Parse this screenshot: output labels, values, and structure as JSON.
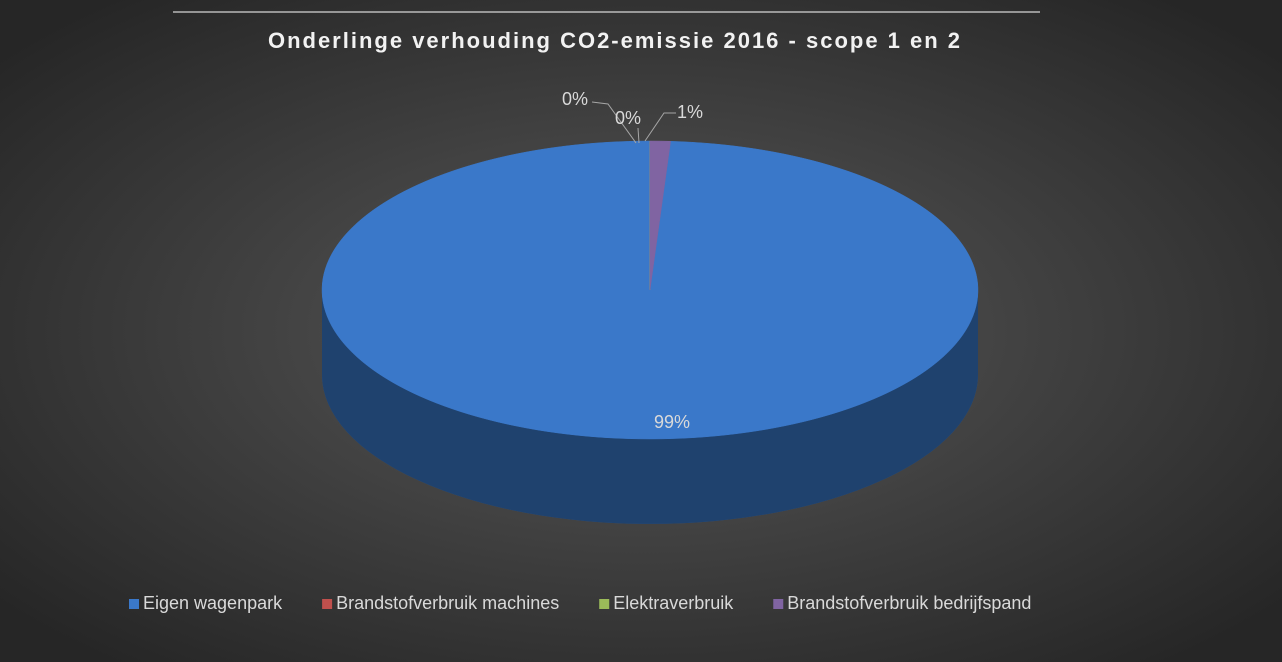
{
  "chart_data": {
    "type": "pie",
    "title": "Onderlinge verhouding CO2-emissie 2016 - scope 1 en 2",
    "categories": [
      "Eigen wagenpark",
      "Brandstofverbruik machines",
      "Elektraverbruik",
      "Brandstofverbruik bedrijfspand"
    ],
    "values": [
      99,
      0,
      0,
      1
    ],
    "value_labels": [
      "99%",
      "0%",
      "0%",
      "1%"
    ],
    "colors": [
      "#3a78c9",
      "#c0504d",
      "#9bbb59",
      "#8064a2"
    ],
    "legend": "bottom"
  }
}
